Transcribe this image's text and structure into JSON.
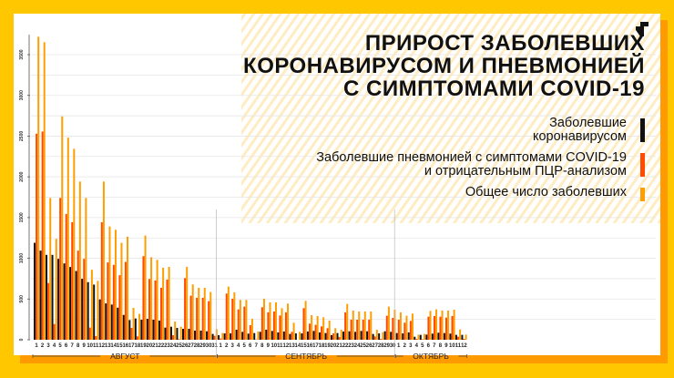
{
  "title": [
    "ПРИРОСТ ЗАБОЛЕВШИХ",
    "КОРОНАВИРУСОМ И ПНЕВМОНИЕЙ",
    "С СИМПТОМАМИ COVID-19"
  ],
  "colors": {
    "background": "#FFC700",
    "covid": "#111111",
    "pneumonia": "#FF4A00",
    "total": "#FF9E00"
  },
  "chart_data": {
    "type": "bar",
    "title": "ПРИРОСТ ЗАБОЛЕВШИХ КОРОНАВИРУСОМ И ПНЕВМОНИЕЙ С СИМПТОМАМИ COVID-19",
    "ylim": [
      0,
      3500
    ],
    "yticks": [
      0,
      500,
      1000,
      1500,
      2000,
      2500,
      3000,
      3500
    ],
    "grid": true,
    "legend": "top-right",
    "months": [
      {
        "label": "АВГУСТ",
        "days": [
          1,
          2,
          3,
          4,
          5,
          6,
          7,
          8,
          9,
          10,
          11,
          12,
          13,
          14,
          15,
          16,
          17,
          18,
          19,
          20,
          21,
          22,
          23,
          24,
          25,
          26,
          27,
          28,
          29,
          30,
          31
        ]
      },
      {
        "label": "СЕНТЯБРЬ",
        "days": [
          1,
          2,
          3,
          4,
          5,
          6,
          7,
          8,
          9,
          10,
          11,
          12,
          13,
          14,
          15,
          16,
          17,
          18,
          19,
          20,
          21,
          22,
          23,
          24,
          25,
          26,
          27,
          28,
          29,
          30
        ]
      },
      {
        "label": "ОКТЯБРЬ",
        "days": [
          1,
          2,
          3,
          4,
          5,
          6,
          7,
          8,
          9,
          10,
          11,
          12
        ]
      }
    ],
    "series": [
      {
        "name": "Заболевшие коронавирусом",
        "color": "#111111",
        "values": [
          1190,
          1094,
          1042,
          1042,
          993,
          937,
          893,
          844,
          748,
          707,
          677,
          495,
          446,
          432,
          394,
          305,
          242,
          261,
          246,
          257,
          246,
          235,
          149,
          160,
          145,
          134,
          134,
          112,
          112,
          104,
          71,
          56,
          78,
          78,
          123,
          97,
          75,
          82,
          97,
          123,
          108,
          90,
          101,
          71,
          78,
          78,
          101,
          108,
          90,
          82,
          56,
          82,
          101,
          104,
          97,
          108,
          104,
          71,
          78,
          104,
          97,
          82,
          78,
          90,
          37,
          60,
          63,
          75,
          86,
          82,
          75,
          60,
          60
        ]
      },
      {
        "name": "Заболевшие пневмонией с симптомами COVID-19 и отрицательным ПЦР-анализом",
        "color": "#FF4A00",
        "values": [
          2530,
          2556,
          696,
          193,
          1741,
          1544,
          1443,
          1094,
          993,
          149,
          45,
          1443,
          949,
          919,
          792,
          956,
          145,
          41,
          1026,
          746,
          727,
          638,
          738,
          56,
          7,
          757,
          541,
          515,
          515,
          474,
          48,
          15,
          567,
          504,
          373,
          407,
          179,
          4,
          399,
          336,
          347,
          298,
          336,
          97,
          0,
          388,
          198,
          183,
          164,
          142,
          78,
          34,
          336,
          246,
          246,
          246,
          246,
          41,
          11,
          295,
          269,
          246,
          209,
          231,
          11,
          7,
          283,
          291,
          283,
          272,
          291,
          37,
          11
        ]
      },
      {
        "name": "Общее число заболевших",
        "color": "#FF9E00",
        "values": [
          3720,
          3653,
          1741,
          1239,
          2742,
          2481,
          2344,
          1942,
          1741,
          859,
          722,
          1942,
          1391,
          1350,
          1190,
          1265,
          391,
          317,
          1279,
          1014,
          981,
          884,
          895,
          224,
          160,
          895,
          679,
          638,
          638,
          586,
          130,
          82,
          653,
          582,
          489,
          489,
          257,
          101,
          504,
          459,
          459,
          388,
          444,
          209,
          97,
          477,
          302,
          291,
          276,
          235,
          142,
          123,
          440,
          358,
          347,
          347,
          347,
          123,
          93,
          407,
          369,
          336,
          295,
          321,
          63,
          71,
          354,
          373,
          358,
          358,
          369,
          127,
          63
        ]
      }
    ]
  }
}
